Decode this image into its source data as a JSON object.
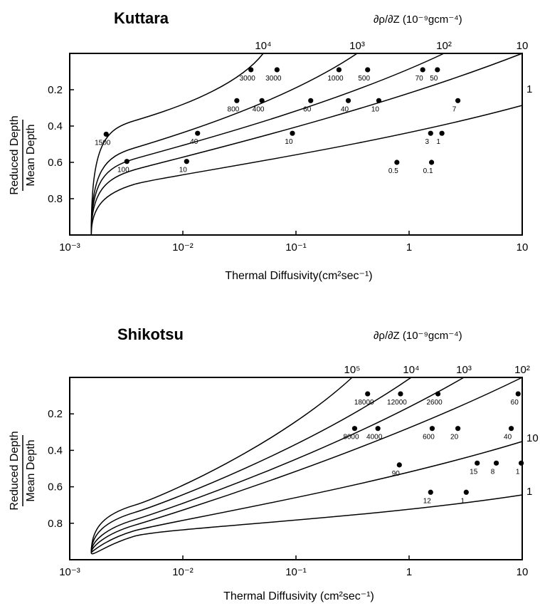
{
  "chart_data": [
    {
      "type": "scatter",
      "title": "Kuttara",
      "xlabel": "Thermal  Diffusivity(cm²sec⁻¹)",
      "ylabel_top": "Reduced Depth",
      "ylabel_bottom": "Mean Depth",
      "gradient_label": "∂ρ/∂Z (10⁻⁹gcm⁻⁴)",
      "xscale": "log",
      "xlim": [
        0.001,
        10
      ],
      "ylim": [
        0.0,
        1.0
      ],
      "y_inverted": true,
      "x_ticks": [
        "10⁻³",
        "10⁻²",
        "10⁻¹",
        "1",
        "10"
      ],
      "y_ticks": [
        0.2,
        0.4,
        0.6,
        0.8
      ],
      "curves": [
        {
          "label": "10⁴",
          "label_pos": "top"
        },
        {
          "label": "10³",
          "label_pos": "top"
        },
        {
          "label": "10²",
          "label_pos": "top"
        },
        {
          "label": "10",
          "label_pos": "top"
        },
        {
          "label": "1",
          "label_pos": "right"
        }
      ],
      "points": [
        {
          "x": 0.04,
          "y": 0.09,
          "label": "3000"
        },
        {
          "x": 0.068,
          "y": 0.09,
          "label": "3000"
        },
        {
          "x": 0.24,
          "y": 0.09,
          "label": "1000"
        },
        {
          "x": 0.43,
          "y": 0.09,
          "label": "500"
        },
        {
          "x": 1.32,
          "y": 0.09,
          "label": "70"
        },
        {
          "x": 1.78,
          "y": 0.09,
          "label": "50"
        },
        {
          "x": 0.03,
          "y": 0.26,
          "label": "800"
        },
        {
          "x": 0.05,
          "y": 0.26,
          "label": "400"
        },
        {
          "x": 0.135,
          "y": 0.26,
          "label": "60"
        },
        {
          "x": 0.29,
          "y": 0.26,
          "label": "40"
        },
        {
          "x": 0.54,
          "y": 0.26,
          "label": "10"
        },
        {
          "x": 2.7,
          "y": 0.26,
          "label": "7"
        },
        {
          "x": 0.0021,
          "y": 0.445,
          "label": "1500"
        },
        {
          "x": 0.0135,
          "y": 0.44,
          "label": "40"
        },
        {
          "x": 0.093,
          "y": 0.44,
          "label": "10"
        },
        {
          "x": 1.55,
          "y": 0.44,
          "label": "3"
        },
        {
          "x": 1.95,
          "y": 0.44,
          "label": "1"
        },
        {
          "x": 0.0032,
          "y": 0.595,
          "label": "100"
        },
        {
          "x": 0.0108,
          "y": 0.595,
          "label": "10"
        },
        {
          "x": 0.78,
          "y": 0.6,
          "label": "0.5"
        },
        {
          "x": 1.58,
          "y": 0.6,
          "label": "0.1"
        }
      ]
    },
    {
      "type": "scatter",
      "title": "Shikotsu",
      "xlabel": "Thermal  Diffusivity (cm²sec⁻¹)",
      "ylabel_top": "Reduced Depth",
      "ylabel_bottom": "Mean Depth",
      "gradient_label": "∂ρ/∂Z (10⁻⁹gcm⁻⁴)",
      "xscale": "log",
      "xlim": [
        0.001,
        10
      ],
      "ylim": [
        0.0,
        1.0
      ],
      "y_inverted": true,
      "x_ticks": [
        "10⁻³",
        "10⁻²",
        "10⁻¹",
        "1",
        "10"
      ],
      "y_ticks": [
        0.2,
        0.4,
        0.6,
        0.8
      ],
      "curves": [
        {
          "label": "10⁵",
          "label_pos": "top"
        },
        {
          "label": "10⁴",
          "label_pos": "top"
        },
        {
          "label": "10³",
          "label_pos": "top"
        },
        {
          "label": "10²",
          "label_pos": "top"
        },
        {
          "label": "10",
          "label_pos": "right"
        },
        {
          "label": "1",
          "label_pos": "right"
        }
      ],
      "points": [
        {
          "x": 0.43,
          "y": 0.09,
          "label": "18000"
        },
        {
          "x": 0.84,
          "y": 0.09,
          "label": "12000"
        },
        {
          "x": 1.8,
          "y": 0.09,
          "label": "2600"
        },
        {
          "x": 9.2,
          "y": 0.09,
          "label": "60"
        },
        {
          "x": 0.33,
          "y": 0.28,
          "label": "8000"
        },
        {
          "x": 0.53,
          "y": 0.28,
          "label": "4000"
        },
        {
          "x": 1.6,
          "y": 0.28,
          "label": "600"
        },
        {
          "x": 2.7,
          "y": 0.28,
          "label": "20"
        },
        {
          "x": 8.0,
          "y": 0.28,
          "label": "40"
        },
        {
          "x": 0.82,
          "y": 0.48,
          "label": "90"
        },
        {
          "x": 4.0,
          "y": 0.47,
          "label": "15"
        },
        {
          "x": 5.9,
          "y": 0.47,
          "label": "8"
        },
        {
          "x": 9.8,
          "y": 0.47,
          "label": "1"
        },
        {
          "x": 1.55,
          "y": 0.63,
          "label": "12"
        },
        {
          "x": 3.2,
          "y": 0.63,
          "label": "1"
        }
      ]
    }
  ]
}
